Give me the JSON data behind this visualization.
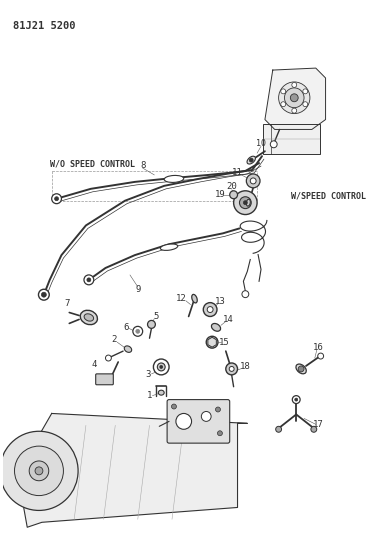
{
  "title": "81J21 5200",
  "bg": "#ffffff",
  "lc": "#333333",
  "label_wo": "W/O SPEED CONTROL",
  "label_w": "W/SPEED CONTROL",
  "figsize": [
    3.88,
    5.33
  ],
  "dpi": 100
}
